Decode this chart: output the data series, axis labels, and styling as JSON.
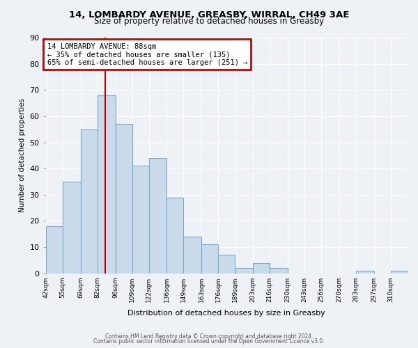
{
  "title1": "14, LOMBARDY AVENUE, GREASBY, WIRRAL, CH49 3AE",
  "title2": "Size of property relative to detached houses in Greasby",
  "xlabel": "Distribution of detached houses by size in Greasby",
  "ylabel": "Number of detached properties",
  "footer1": "Contains HM Land Registry data © Crown copyright and database right 2024.",
  "footer2": "Contains public sector information licensed under the Open Government Licence v3.0.",
  "bin_labels": [
    "42sqm",
    "55sqm",
    "69sqm",
    "82sqm",
    "96sqm",
    "109sqm",
    "122sqm",
    "136sqm",
    "149sqm",
    "163sqm",
    "176sqm",
    "189sqm",
    "203sqm",
    "216sqm",
    "230sqm",
    "243sqm",
    "256sqm",
    "270sqm",
    "283sqm",
    "297sqm",
    "310sqm"
  ],
  "bar_heights": [
    18,
    35,
    55,
    68,
    57,
    41,
    44,
    29,
    14,
    11,
    7,
    2,
    4,
    2,
    0,
    0,
    0,
    0,
    1,
    0,
    1
  ],
  "bar_color": "#c9daea",
  "bar_edge_color": "#7aaac8",
  "property_line_x": 88,
  "bin_edges": [
    42,
    55,
    69,
    82,
    96,
    109,
    122,
    136,
    149,
    163,
    176,
    189,
    203,
    216,
    230,
    243,
    256,
    270,
    283,
    297,
    310,
    323
  ],
  "annotation_title": "14 LOMBARDY AVENUE: 88sqm",
  "annotation_line1": "← 35% of detached houses are smaller (135)",
  "annotation_line2": "65% of semi-detached houses are larger (251) →",
  "annotation_box_color": "#ffffff",
  "annotation_box_edge": "#cc0000",
  "red_line_color": "#cc0000",
  "ylim": [
    0,
    90
  ],
  "background_color": "#eef2f7",
  "grid_color": "#ffffff",
  "tick_label_color": "#000000"
}
